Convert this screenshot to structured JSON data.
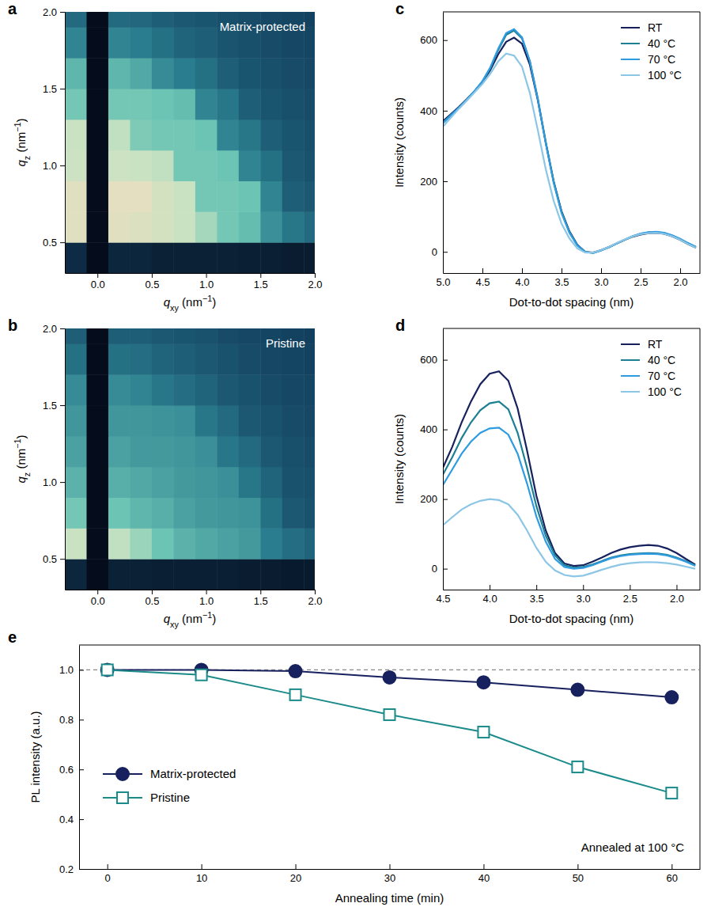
{
  "chart_data": [
    {
      "panel": "a",
      "type": "heatmap",
      "annotation": "Matrix-protected",
      "x_edges": [
        -0.3,
        -0.1,
        0.1,
        0.3,
        0.5,
        0.7,
        0.9,
        1.1,
        1.3,
        1.5,
        1.7,
        1.9,
        2.0
      ],
      "y_edges": [
        0.3,
        0.5,
        0.7,
        0.9,
        1.1,
        1.3,
        1.5,
        1.7,
        1.9,
        2.0
      ],
      "values": [
        [
          0.12,
          0,
          0.1,
          0.1,
          0.08,
          0.08,
          0.08,
          0.08,
          0.07,
          0.07,
          0.06,
          0.06
        ],
        [
          0.9,
          0,
          0.9,
          0.88,
          0.85,
          0.8,
          0.72,
          0.62,
          0.58,
          0.45,
          0.38,
          0.34
        ],
        [
          0.9,
          0,
          0.92,
          0.92,
          0.85,
          0.8,
          0.62,
          0.62,
          0.6,
          0.42,
          0.3,
          0.28
        ],
        [
          0.82,
          0,
          0.82,
          0.8,
          0.78,
          0.62,
          0.62,
          0.6,
          0.42,
          0.36,
          0.28,
          0.26
        ],
        [
          0.8,
          0,
          0.78,
          0.64,
          0.62,
          0.62,
          0.6,
          0.42,
          0.38,
          0.3,
          0.27,
          0.25
        ],
        [
          0.62,
          0,
          0.62,
          0.62,
          0.6,
          0.58,
          0.42,
          0.38,
          0.3,
          0.27,
          0.25,
          0.24
        ],
        [
          0.56,
          0,
          0.56,
          0.52,
          0.44,
          0.4,
          0.36,
          0.3,
          0.27,
          0.25,
          0.24,
          0.23
        ],
        [
          0.42,
          0,
          0.42,
          0.4,
          0.36,
          0.32,
          0.3,
          0.27,
          0.25,
          0.24,
          0.23,
          0.22
        ],
        [
          0.34,
          0,
          0.34,
          0.33,
          0.3,
          0.28,
          0.27,
          0.25,
          0.24,
          0.23,
          0.22,
          0.21
        ]
      ],
      "zlim": [
        0,
        1
      ],
      "xlim": [
        -0.3,
        2.0
      ],
      "ylim": [
        0.3,
        2.0
      ],
      "xticks": [
        {
          "value": 0,
          "label": "0.0"
        },
        0.5,
        {
          "value": 1,
          "label": "1.0"
        },
        1.5,
        {
          "value": 2,
          "label": "2.0"
        }
      ],
      "yticks": [
        0.5,
        {
          "value": 1,
          "label": "1.0"
        },
        1.5,
        {
          "value": 2,
          "label": "2.0"
        }
      ],
      "xlabel": [
        {
          "text": "q",
          "italic": true
        },
        {
          "text": "xy",
          "sub": true
        },
        {
          "text": " (nm"
        },
        {
          "text": "−1",
          "sup": true
        },
        {
          "text": ")"
        }
      ],
      "ylabel": [
        {
          "text": "q",
          "italic": true
        },
        {
          "text": "z",
          "sub": true
        },
        {
          "text": " (nm"
        },
        {
          "text": "−1",
          "sup": true
        },
        {
          "text": ")"
        }
      ]
    },
    {
      "panel": "b",
      "type": "heatmap",
      "annotation": "Pristine",
      "x_edges": [
        -0.3,
        -0.1,
        0.1,
        0.3,
        0.5,
        0.7,
        0.9,
        1.1,
        1.3,
        1.5,
        1.7,
        1.9,
        2.0
      ],
      "y_edges": [
        0.3,
        0.5,
        0.7,
        0.9,
        1.1,
        1.3,
        1.5,
        1.7,
        1.9,
        2.0
      ],
      "values": [
        [
          0.1,
          0,
          0.08,
          0.08,
          0.07,
          0.07,
          0.07,
          0.07,
          0.06,
          0.06,
          0.05,
          0.05
        ],
        [
          0.8,
          0,
          0.78,
          0.7,
          0.6,
          0.55,
          0.52,
          0.5,
          0.48,
          0.4,
          0.35,
          0.32
        ],
        [
          0.62,
          0,
          0.6,
          0.56,
          0.54,
          0.5,
          0.48,
          0.47,
          0.46,
          0.36,
          0.28,
          0.26
        ],
        [
          0.55,
          0,
          0.54,
          0.52,
          0.5,
          0.48,
          0.47,
          0.45,
          0.38,
          0.32,
          0.26,
          0.25
        ],
        [
          0.5,
          0,
          0.5,
          0.48,
          0.48,
          0.47,
          0.45,
          0.38,
          0.34,
          0.28,
          0.25,
          0.24
        ],
        [
          0.47,
          0,
          0.47,
          0.47,
          0.46,
          0.45,
          0.38,
          0.34,
          0.28,
          0.26,
          0.24,
          0.23
        ],
        [
          0.44,
          0,
          0.44,
          0.42,
          0.38,
          0.35,
          0.32,
          0.28,
          0.26,
          0.24,
          0.23,
          0.22
        ],
        [
          0.36,
          0,
          0.36,
          0.35,
          0.32,
          0.3,
          0.28,
          0.26,
          0.24,
          0.23,
          0.22,
          0.21
        ],
        [
          0.3,
          0,
          0.3,
          0.3,
          0.28,
          0.27,
          0.26,
          0.24,
          0.23,
          0.22,
          0.21,
          0.2
        ]
      ],
      "zlim": [
        0,
        1
      ],
      "xlim": [
        -0.3,
        2.0
      ],
      "ylim": [
        0.3,
        2.0
      ],
      "xticks": [
        {
          "value": 0,
          "label": "0.0"
        },
        0.5,
        {
          "value": 1,
          "label": "1.0"
        },
        1.5,
        {
          "value": 2,
          "label": "2.0"
        }
      ],
      "yticks": [
        0.5,
        {
          "value": 1,
          "label": "1.0"
        },
        1.5,
        {
          "value": 2,
          "label": "2.0"
        }
      ],
      "xlabel": [
        {
          "text": "q",
          "italic": true
        },
        {
          "text": "xy",
          "sub": true
        },
        {
          "text": " (nm"
        },
        {
          "text": "−1",
          "sup": true
        },
        {
          "text": ")"
        }
      ],
      "ylabel": [
        {
          "text": "q",
          "italic": true
        },
        {
          "text": "z",
          "sub": true
        },
        {
          "text": " (nm"
        },
        {
          "text": "−1",
          "sup": true
        },
        {
          "text": ")"
        }
      ]
    },
    {
      "panel": "c",
      "type": "line",
      "legend": "upper right",
      "x": [
        5.0,
        4.9,
        4.8,
        4.7,
        4.6,
        4.5,
        4.4,
        4.3,
        4.2,
        4.1,
        4.0,
        3.9,
        3.8,
        3.7,
        3.6,
        3.5,
        3.4,
        3.3,
        3.2,
        3.1,
        3.0,
        2.9,
        2.8,
        2.7,
        2.6,
        2.5,
        2.4,
        2.3,
        2.2,
        2.1,
        2.0,
        1.9,
        1.8
      ],
      "series": [
        {
          "name": "RT",
          "color": "#17215e",
          "values": [
            370,
            390,
            410,
            432,
            455,
            480,
            515,
            560,
            595,
            607,
            590,
            530,
            430,
            310,
            200,
            115,
            58,
            20,
            0,
            -2,
            5,
            14,
            24,
            34,
            43,
            49,
            53,
            54,
            51,
            44,
            34,
            22,
            12
          ]
        },
        {
          "name": "40 °C",
          "color": "#1d7f93",
          "values": [
            365,
            387,
            408,
            430,
            455,
            482,
            520,
            572,
            615,
            627,
            605,
            540,
            435,
            312,
            200,
            113,
            56,
            19,
            0,
            -3,
            4,
            13,
            24,
            34,
            44,
            51,
            55,
            56,
            53,
            46,
            36,
            24,
            14
          ]
        },
        {
          "name": "70 °C",
          "color": "#2f9be0",
          "values": [
            365,
            387,
            408,
            431,
            456,
            484,
            523,
            576,
            620,
            631,
            608,
            540,
            432,
            308,
            196,
            110,
            54,
            18,
            0,
            -3,
            4,
            13,
            24,
            35,
            45,
            52,
            56,
            57,
            54,
            47,
            37,
            25,
            14
          ]
        },
        {
          "name": "100 °C",
          "color": "#8cc6e6",
          "values": [
            355,
            380,
            405,
            428,
            452,
            476,
            505,
            540,
            562,
            556,
            525,
            450,
            345,
            235,
            145,
            80,
            38,
            10,
            -2,
            -2,
            5,
            14,
            25,
            35,
            44,
            50,
            53,
            54,
            51,
            44,
            34,
            22,
            12
          ]
        }
      ],
      "xlim": [
        5.0,
        1.75
      ],
      "ylim": [
        -60,
        680
      ],
      "xticks": [
        {
          "value": 5,
          "label": "5.0"
        },
        4.5,
        {
          "value": 4,
          "label": "4.0"
        },
        3.5,
        {
          "value": 3,
          "label": "3.0"
        },
        2.5,
        {
          "value": 2,
          "label": "2.0"
        }
      ],
      "yticks": [
        0,
        200,
        400,
        600
      ],
      "xlabel": "Dot-to-dot spacing (nm)",
      "ylabel": "Intensity (counts)"
    },
    {
      "panel": "d",
      "type": "line",
      "legend": "upper right",
      "x": [
        4.5,
        4.4,
        4.3,
        4.2,
        4.1,
        4.0,
        3.9,
        3.8,
        3.7,
        3.6,
        3.5,
        3.4,
        3.3,
        3.2,
        3.1,
        3.0,
        2.9,
        2.8,
        2.7,
        2.6,
        2.5,
        2.4,
        2.3,
        2.2,
        2.1,
        2.0,
        1.9,
        1.8
      ],
      "series": [
        {
          "name": "RT",
          "color": "#17215e",
          "values": [
            290,
            350,
            420,
            480,
            530,
            560,
            567,
            540,
            460,
            340,
            210,
            110,
            45,
            15,
            8,
            10,
            20,
            32,
            45,
            55,
            62,
            66,
            68,
            66,
            58,
            45,
            28,
            12
          ]
        },
        {
          "name": "40 °C",
          "color": "#1d7f93",
          "values": [
            270,
            320,
            375,
            420,
            455,
            475,
            480,
            458,
            390,
            290,
            180,
            95,
            38,
            10,
            3,
            5,
            12,
            22,
            32,
            38,
            42,
            44,
            45,
            44,
            40,
            32,
            22,
            10
          ]
        },
        {
          "name": "70 °C",
          "color": "#2f9be0",
          "values": [
            240,
            285,
            330,
            365,
            390,
            403,
            405,
            385,
            330,
            245,
            150,
            78,
            28,
            5,
            0,
            2,
            10,
            20,
            30,
            36,
            40,
            42,
            43,
            42,
            38,
            30,
            20,
            8
          ]
        },
        {
          "name": "100 °C",
          "color": "#8cc6e6",
          "values": [
            125,
            148,
            170,
            185,
            195,
            200,
            197,
            185,
            155,
            110,
            60,
            20,
            -5,
            -18,
            -22,
            -20,
            -12,
            -3,
            5,
            12,
            16,
            18,
            19,
            18,
            16,
            12,
            6,
            0
          ]
        }
      ],
      "xlim": [
        4.5,
        1.75
      ],
      "ylim": [
        -60,
        690
      ],
      "xticks": [
        4.5,
        {
          "value": 4,
          "label": "4.0"
        },
        3.5,
        {
          "value": 3,
          "label": "3.0"
        },
        2.5,
        {
          "value": 2,
          "label": "2.0"
        }
      ],
      "yticks": [
        0,
        200,
        400,
        600
      ],
      "xlabel": "Dot-to-dot spacing (nm)",
      "ylabel": "Intensity (counts)"
    },
    {
      "panel": "e",
      "type": "line",
      "legend": "lower left",
      "annotation": "Annealed at 100 °C",
      "x": [
        0,
        10,
        20,
        30,
        40,
        50,
        60
      ],
      "reference_y": 1.0,
      "series": [
        {
          "name": "Matrix-protected",
          "color": "#17215e",
          "marker": "circle",
          "values": [
            1.0,
            1.0,
            0.995,
            0.97,
            0.95,
            0.92,
            0.89
          ]
        },
        {
          "name": "Pristine",
          "color": "#1b8a8a",
          "marker": "open-square",
          "values": [
            1.0,
            0.98,
            0.9,
            0.82,
            0.75,
            0.61,
            0.505
          ]
        }
      ],
      "xlim": [
        -3,
        63
      ],
      "ylim": [
        0.2,
        1.1
      ],
      "xticks": [
        0,
        10,
        20,
        30,
        40,
        50,
        60
      ],
      "yticks": [
        0.2,
        0.4,
        0.6,
        0.8,
        {
          "value": 1,
          "label": "1.0"
        }
      ],
      "xlabel": "Annealing time (min)",
      "ylabel": "PL intensity (a.u.)"
    }
  ]
}
